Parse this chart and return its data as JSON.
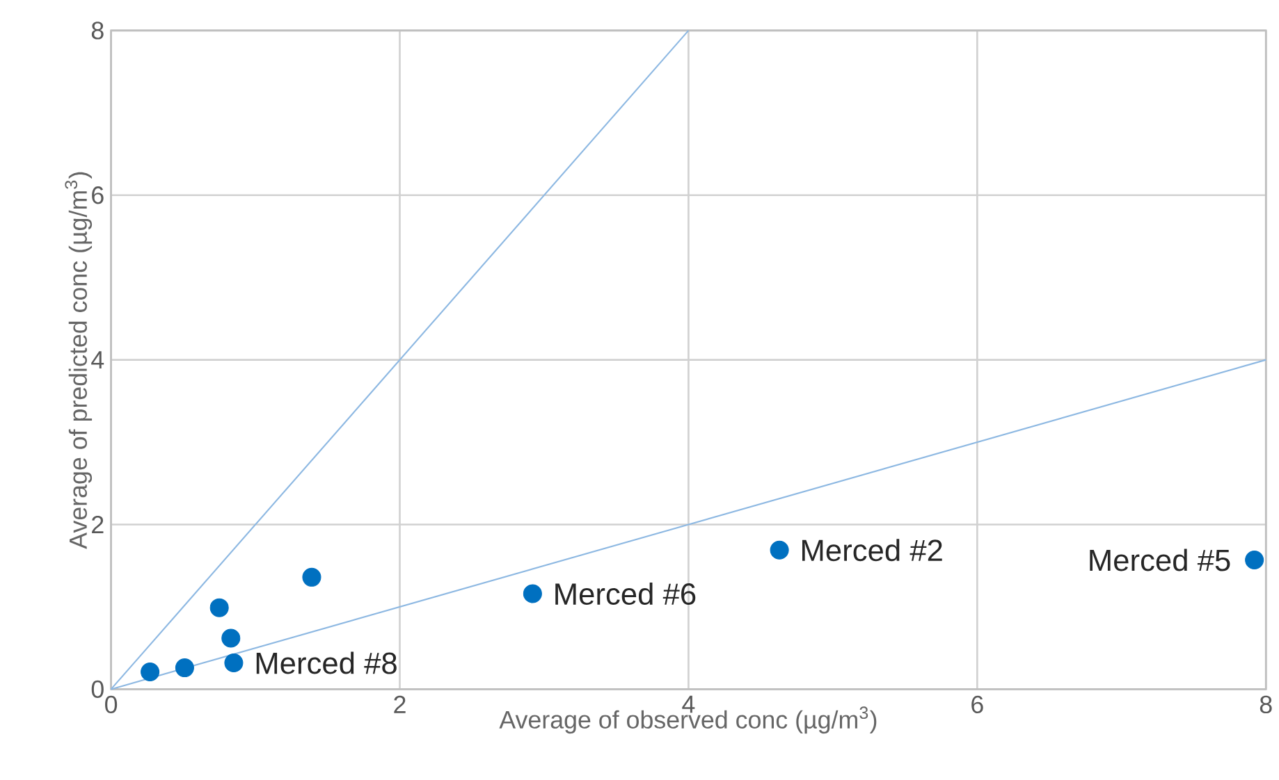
{
  "chart_data": {
    "type": "scatter",
    "xlabel": "Average of observed conc (µg/m$^{3}$)",
    "ylabel": "Average of predicted conc (µg/m$^{3}$)",
    "xlim": [
      0,
      8
    ],
    "ylim": [
      0,
      8
    ],
    "xticks": [
      0,
      2,
      4,
      6,
      8
    ],
    "yticks": [
      0,
      2,
      4,
      6,
      8
    ],
    "grid": true,
    "marker": "circle",
    "series": [
      {
        "color": "#0070c0",
        "x": [
          0.27,
          0.51,
          0.75,
          0.83,
          0.85,
          1.39,
          2.92,
          4.63,
          7.92
        ],
        "values": [
          0.21,
          0.26,
          0.99,
          0.62,
          0.32,
          1.36,
          1.16,
          1.69,
          1.57
        ]
      },
      {
        "type": "line",
        "marker": "none",
        "color": "#8db8e2",
        "x": [
          0,
          4
        ],
        "values": [
          0,
          8
        ]
      },
      {
        "type": "line",
        "marker": "none",
        "color": "#8db8e2",
        "x": [
          0,
          8
        ],
        "values": [
          0,
          4
        ]
      }
    ],
    "annotations": [
      {
        "text": "Merced #8",
        "x": 0.85,
        "y": 0.32
      },
      {
        "text": "Merced #6",
        "x": 2.92,
        "y": 1.16
      },
      {
        "text": "Merced #2",
        "x": 4.63,
        "y": 1.69
      },
      {
        "text": "Merced #5",
        "x": 7.92,
        "y": 1.57
      }
    ]
  }
}
